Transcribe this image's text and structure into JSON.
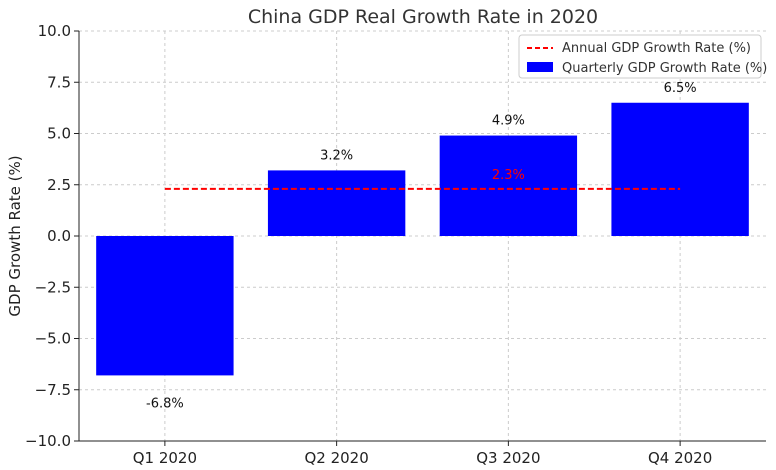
{
  "chart_data": {
    "type": "bar",
    "title": "China GDP Real Growth Rate in 2020",
    "xlabel": "",
    "ylabel": "GDP Growth Rate (%)",
    "categories": [
      "Q1 2020",
      "Q2 2020",
      "Q3 2020",
      "Q4 2020"
    ],
    "series": [
      {
        "name": "Quarterly GDP Growth Rate (%)",
        "kind": "bar",
        "color": "#0000ff",
        "values": [
          -6.8,
          3.2,
          4.9,
          6.5
        ],
        "labels": [
          "-6.8%",
          "3.2%",
          "4.9%",
          "6.5%"
        ]
      },
      {
        "name": "Annual GDP Growth Rate (%)",
        "kind": "hline",
        "color": "#ff0000",
        "style": "dashed",
        "value": 2.3,
        "label": "2.3%"
      }
    ],
    "ylim": [
      -10.0,
      10.0
    ],
    "yticks": [
      -10.0,
      -7.5,
      -5.0,
      -2.5,
      0.0,
      2.5,
      5.0,
      7.5,
      10.0
    ],
    "ytick_labels": [
      "−10.0",
      "−7.5",
      "−5.0",
      "−2.5",
      "0.0",
      "2.5",
      "5.0",
      "7.5",
      "10.0"
    ],
    "grid": true,
    "legend_position": "top-right"
  }
}
